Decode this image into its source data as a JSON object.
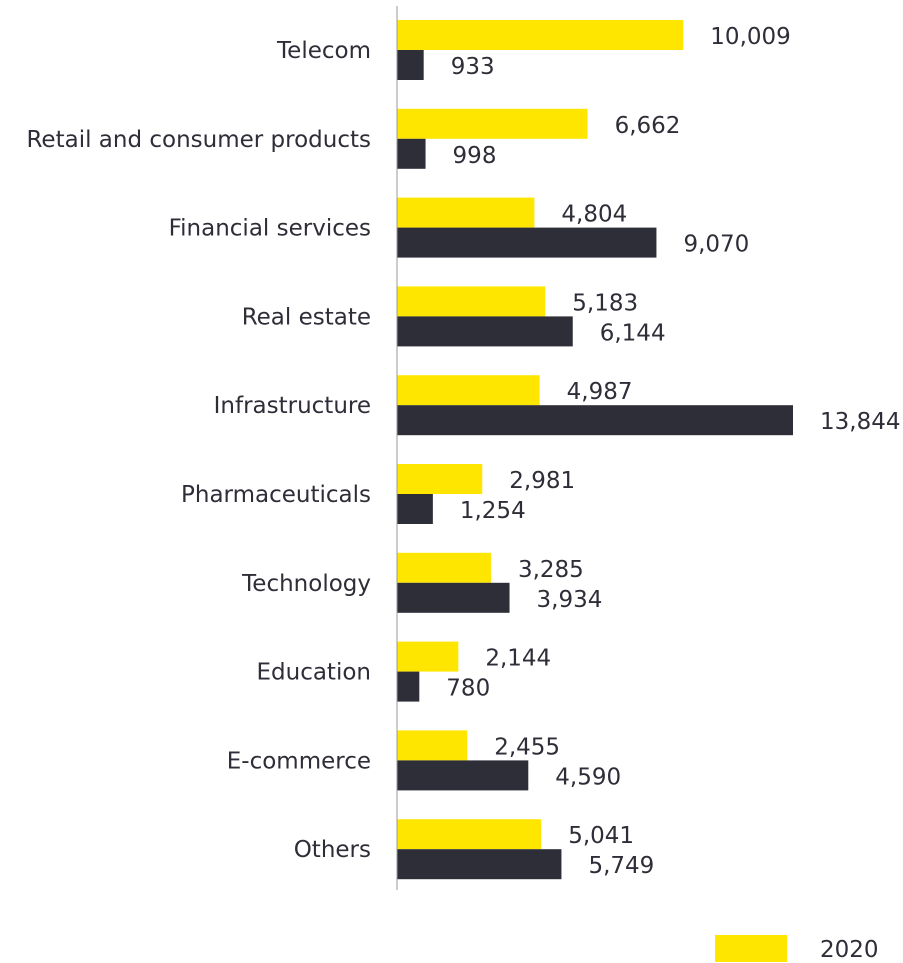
{
  "chart_data": {
    "type": "bar",
    "orientation": "horizontal",
    "categories": [
      "Telecom",
      "Retail and consumer products",
      "Financial services",
      "Real estate",
      "Infrastructure",
      "Pharmaceuticals",
      "Technology",
      "Education",
      "E-commerce",
      "Others"
    ],
    "series": [
      {
        "name": "2020",
        "color": "#ffe600",
        "values": [
          10009,
          6662,
          4804,
          5183,
          4987,
          2981,
          3285,
          2144,
          2455,
          5041
        ],
        "labels": [
          "10,009",
          "6,662",
          "4,804",
          "5,183",
          "4,987",
          "2,981",
          "3,285",
          "2,144",
          "2,455",
          "5,041"
        ]
      },
      {
        "color": "#2e2e38",
        "values": [
          933,
          998,
          9070,
          6144,
          13844,
          1254,
          3934,
          780,
          4590,
          5749
        ],
        "labels": [
          "933",
          "998",
          "9,070",
          "6,144",
          "13,844",
          "1,254",
          "3,934",
          "780",
          "4,590",
          "5,749"
        ]
      }
    ],
    "xlim": [
      0,
      13844
    ],
    "grid": false,
    "legend_position": "bottom-right"
  }
}
